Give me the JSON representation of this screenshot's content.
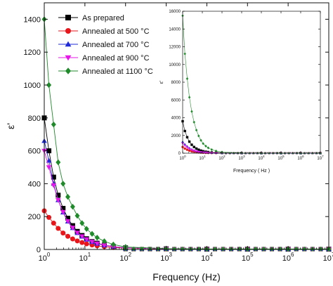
{
  "chart_data": [
    {
      "type": "line",
      "title": "",
      "xlabel": "Frequency (Hz)",
      "ylabel": "ε'",
      "xscale": "log",
      "xlim": [
        1,
        10000000
      ],
      "ylim": [
        0,
        1500
      ],
      "x_ticks": [
        {
          "base": "10",
          "exp": "0"
        },
        {
          "base": "10",
          "exp": "1"
        },
        {
          "base": "10",
          "exp": "2"
        },
        {
          "base": "10",
          "exp": "3"
        },
        {
          "base": "10",
          "exp": "4"
        },
        {
          "base": "10",
          "exp": "5"
        },
        {
          "base": "10",
          "exp": "6"
        },
        {
          "base": "10",
          "exp": "7"
        }
      ],
      "y_ticks": [
        "0",
        "200",
        "400",
        "600",
        "800",
        "1000",
        "1200",
        "1400"
      ],
      "legend_position": "top-left",
      "series": [
        {
          "name": "As prepared",
          "color": "#000000",
          "marker": "square",
          "x": [
            1,
            1.3,
            1.7,
            2.2,
            2.9,
            3.8,
            5,
            6.5,
            8.5,
            11,
            15,
            20,
            30,
            50,
            100,
            1000,
            10000,
            100000,
            1000000,
            10000000
          ],
          "y": [
            800,
            600,
            440,
            330,
            250,
            190,
            145,
            110,
            85,
            65,
            48,
            38,
            27,
            18,
            10,
            4,
            2,
            2,
            2,
            2
          ]
        },
        {
          "name": "Annealed at 500 °C",
          "color": "#e8161b",
          "marker": "circle",
          "x": [
            1,
            1.3,
            1.7,
            2.2,
            2.9,
            3.8,
            5,
            6.5,
            8.5,
            11,
            15,
            20,
            30,
            50,
            100,
            1000,
            10000,
            100000,
            1000000,
            10000000
          ],
          "y": [
            235,
            195,
            160,
            128,
            100,
            80,
            64,
            52,
            42,
            34,
            27,
            22,
            17,
            12,
            8,
            3,
            2,
            2,
            2,
            2
          ]
        },
        {
          "name": "Annealed at 700 °C",
          "color": "#1f2bd8",
          "marker": "triangle-up",
          "x": [
            1,
            1.3,
            1.7,
            2.2,
            2.9,
            3.8,
            5,
            6.5,
            8.5,
            11,
            15,
            20,
            30,
            50,
            100,
            1000,
            10000,
            100000,
            1000000,
            10000000
          ],
          "y": [
            660,
            540,
            400,
            300,
            225,
            170,
            130,
            100,
            78,
            60,
            45,
            35,
            25,
            17,
            10,
            4,
            2,
            2,
            2,
            2
          ]
        },
        {
          "name": "Annealed at 900 °C",
          "color": "#e815e8",
          "marker": "triangle-down",
          "x": [
            1,
            1.3,
            1.7,
            2.2,
            2.9,
            3.8,
            5,
            6.5,
            8.5,
            11,
            15,
            20,
            30,
            50,
            100,
            1000,
            10000,
            100000,
            1000000,
            10000000
          ],
          "y": [
            600,
            500,
            390,
            300,
            228,
            172,
            132,
            102,
            80,
            62,
            47,
            36,
            26,
            17,
            10,
            4,
            2,
            2,
            2,
            2
          ]
        },
        {
          "name": "Annealed at 1100 °C",
          "color": "#1f8a2a",
          "marker": "diamond",
          "x": [
            1,
            1.3,
            1.7,
            2.2,
            2.9,
            3.8,
            5,
            6.5,
            8.5,
            11,
            15,
            20,
            30,
            50,
            100,
            1000,
            10000,
            100000,
            1000000,
            10000000
          ],
          "y": [
            1400,
            1000,
            760,
            530,
            400,
            320,
            260,
            205,
            160,
            125,
            95,
            72,
            50,
            30,
            15,
            5,
            3,
            3,
            3,
            3
          ]
        }
      ]
    },
    {
      "type": "line",
      "title": "",
      "xlabel": "Frequency ( Hz )",
      "ylabel": "ε'",
      "xscale": "log",
      "xlim": [
        1,
        10000000
      ],
      "ylim": [
        0,
        16000
      ],
      "x_ticks": [
        {
          "base": "10",
          "exp": "0"
        },
        {
          "base": "10",
          "exp": "1"
        },
        {
          "base": "10",
          "exp": "2"
        },
        {
          "base": "10",
          "exp": "3"
        },
        {
          "base": "10",
          "exp": "4"
        },
        {
          "base": "10",
          "exp": "5"
        },
        {
          "base": "10",
          "exp": "6"
        },
        {
          "base": "10",
          "exp": "7"
        }
      ],
      "y_ticks": [
        "0",
        "2000",
        "4000",
        "6000",
        "8000",
        "10000",
        "12000",
        "14000",
        "16000"
      ],
      "series": [
        {
          "color": "#000000",
          "marker": "square",
          "x": [
            1,
            1.3,
            1.7,
            2.2,
            2.9,
            3.8,
            5,
            6.5,
            8.5,
            11,
            15,
            20,
            30,
            50,
            100,
            1000,
            10000,
            100000,
            1000000,
            10000000
          ],
          "y": [
            3600,
            2500,
            1800,
            1300,
            950,
            700,
            520,
            390,
            290,
            220,
            165,
            125,
            85,
            55,
            30,
            8,
            4,
            3,
            3,
            3
          ]
        },
        {
          "color": "#e8161b",
          "marker": "circle",
          "x": [
            1,
            1.3,
            1.7,
            2.2,
            2.9,
            3.8,
            5,
            6.5,
            8.5,
            11,
            15,
            20,
            30,
            50,
            100,
            1000,
            10000,
            100000,
            1000000,
            10000000
          ],
          "y": [
            700,
            520,
            390,
            290,
            215,
            160,
            120,
            90,
            68,
            52,
            40,
            30,
            21,
            14,
            8,
            3,
            2,
            2,
            2,
            2
          ]
        },
        {
          "color": "#1f2bd8",
          "marker": "triangle-up",
          "x": [
            1,
            1.3,
            1.7,
            2.2,
            2.9,
            3.8,
            5,
            6.5,
            8.5,
            11,
            15,
            20,
            30,
            50,
            100,
            1000,
            10000,
            100000,
            1000000,
            10000000
          ],
          "y": [
            1300,
            1000,
            760,
            570,
            430,
            320,
            240,
            180,
            135,
            100,
            75,
            56,
            38,
            24,
            13,
            4,
            2,
            2,
            2,
            2
          ]
        },
        {
          "color": "#e815e8",
          "marker": "triangle-down",
          "x": [
            1,
            1.3,
            1.7,
            2.2,
            2.9,
            3.8,
            5,
            6.5,
            8.5,
            11,
            15,
            20,
            30,
            50,
            100,
            1000,
            10000,
            100000,
            1000000,
            10000000
          ],
          "y": [
            1100,
            850,
            650,
            490,
            370,
            280,
            210,
            160,
            120,
            90,
            68,
            50,
            34,
            22,
            12,
            4,
            2,
            2,
            2,
            2
          ]
        },
        {
          "color": "#1f8a2a",
          "marker": "diamond",
          "x": [
            1,
            1.3,
            1.7,
            2.2,
            2.9,
            3.8,
            5,
            6.5,
            8.5,
            11,
            15,
            20,
            30,
            50,
            100,
            1000,
            10000,
            100000,
            1000000,
            10000000
          ],
          "y": [
            15500,
            11200,
            8400,
            6300,
            4700,
            3500,
            2600,
            1950,
            1450,
            1080,
            800,
            600,
            400,
            250,
            130,
            25,
            8,
            5,
            5,
            5
          ]
        }
      ]
    }
  ]
}
